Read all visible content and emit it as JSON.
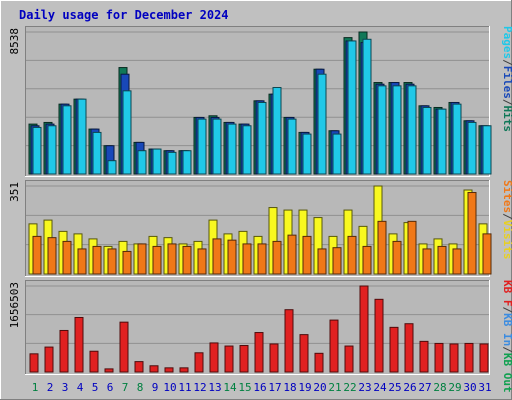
{
  "title": "Daily usage for December 2024",
  "colors": {
    "frame_bg": "#c0c0c0",
    "panel_bg": "#b8b8b8",
    "title": "#0000c0",
    "hits": "#107858",
    "files": "#1848b8",
    "pages": "#20c8e8",
    "visits": "#f8f820",
    "sites": "#f07818",
    "kb_in": "#3c8ce0",
    "kb_out": "#10a050",
    "kb_f": "#e02020",
    "weekend_day": "#008040",
    "weekday_day": "#0000c0"
  },
  "legends": {
    "panel1": [
      {
        "text": "Hits",
        "color": "#107858"
      },
      {
        "text": "/",
        "color": "#404040"
      },
      {
        "text": "Files",
        "color": "#1848b8"
      },
      {
        "text": "/",
        "color": "#404040"
      },
      {
        "text": "Pages",
        "color": "#20c8e8"
      }
    ],
    "panel2": [
      {
        "text": "Visits",
        "color": "#e8d020"
      },
      {
        "text": "/",
        "color": "#404040"
      },
      {
        "text": "Sites",
        "color": "#f07818"
      }
    ],
    "panel3": [
      {
        "text": "KB Out",
        "color": "#10a050"
      },
      {
        "text": "/",
        "color": "#404040"
      },
      {
        "text": "KB In",
        "color": "#3c8ce0"
      },
      {
        "text": "/",
        "color": "#404040"
      },
      {
        "text": "KB F",
        "color": "#e02020"
      }
    ]
  },
  "chart_data": {
    "type": "bar",
    "title": "Daily usage for December 2024",
    "x_label_days": [
      "1",
      "2",
      "3",
      "4",
      "5",
      "6",
      "7",
      "8",
      "9",
      "10",
      "11",
      "12",
      "13",
      "14",
      "15",
      "16",
      "17",
      "18",
      "19",
      "20",
      "21",
      "22",
      "23",
      "24",
      "25",
      "26",
      "27",
      "28",
      "29",
      "30",
      "31"
    ],
    "weekend_days": [
      1,
      7,
      8,
      14,
      15,
      21,
      22,
      28,
      29
    ],
    "panels": [
      {
        "id": "hits",
        "max_label": "8538",
        "ymax": 8538,
        "series": [
          {
            "name": "Hits",
            "values": [
              3000,
              3100,
              4200,
              4500,
              2700,
              1700,
              6400,
              1900,
              1500,
              1400,
              1400,
              3400,
              3500,
              3100,
              3000,
              4400,
              4800,
              3400,
              2500,
              6300,
              2600,
              8200,
              8538,
              5500,
              5500,
              5500,
              4100,
              4000,
              4300,
              3200,
              2900
            ]
          },
          {
            "name": "Files",
            "values": [
              2900,
              3000,
              4200,
              4500,
              2700,
              1700,
              6000,
              1900,
              1500,
              1400,
              1400,
              3400,
              3400,
              3100,
              3000,
              4400,
              4800,
              3400,
              2500,
              6300,
              2600,
              8000,
              7900,
              5400,
              5500,
              5400,
              4100,
              3900,
              4300,
              3200,
              2900
            ]
          },
          {
            "name": "Pages",
            "values": [
              2800,
              2900,
              4100,
              4500,
              2500,
              800,
              5000,
              1400,
              1500,
              1300,
              1400,
              3300,
              3300,
              3000,
              2900,
              4300,
              5200,
              3300,
              2400,
              6000,
              2400,
              8000,
              8100,
              5300,
              5300,
              5300,
              4000,
              3900,
              4200,
              3100,
              2900
            ]
          }
        ]
      },
      {
        "id": "visits",
        "max_label": "351",
        "ymax": 351,
        "series": [
          {
            "name": "Visits",
            "values": [
              200,
              215,
              170,
              160,
              140,
              110,
              130,
              120,
              150,
              145,
              120,
              130,
              215,
              160,
              170,
              150,
              265,
              255,
              255,
              225,
              150,
              255,
              190,
              351,
              160,
              205,
              120,
              140,
              120,
              335,
              200
            ]
          },
          {
            "name": "Sites",
            "values": [
              150,
              145,
              130,
              100,
              110,
              100,
              90,
              120,
              110,
              120,
              110,
              100,
              140,
              135,
              120,
              120,
              130,
              155,
              150,
              100,
              105,
              150,
              110,
              210,
              130,
              210,
              100,
              110,
              100,
              325,
              160
            ]
          }
        ]
      },
      {
        "id": "kbf",
        "max_label": "1656503",
        "ymax": 1656503,
        "series": [
          {
            "name": "KB F",
            "values": [
              350000,
              480000,
              800000,
              1050000,
              400000,
              60000,
              960000,
              200000,
              120000,
              80000,
              80000,
              370000,
              560000,
              500000,
              510000,
              760000,
              540000,
              1200000,
              720000,
              360000,
              1000000,
              500000,
              1656503,
              1400000,
              860000,
              930000,
              590000,
              550000,
              540000,
              550000,
              540000
            ]
          }
        ]
      }
    ]
  }
}
